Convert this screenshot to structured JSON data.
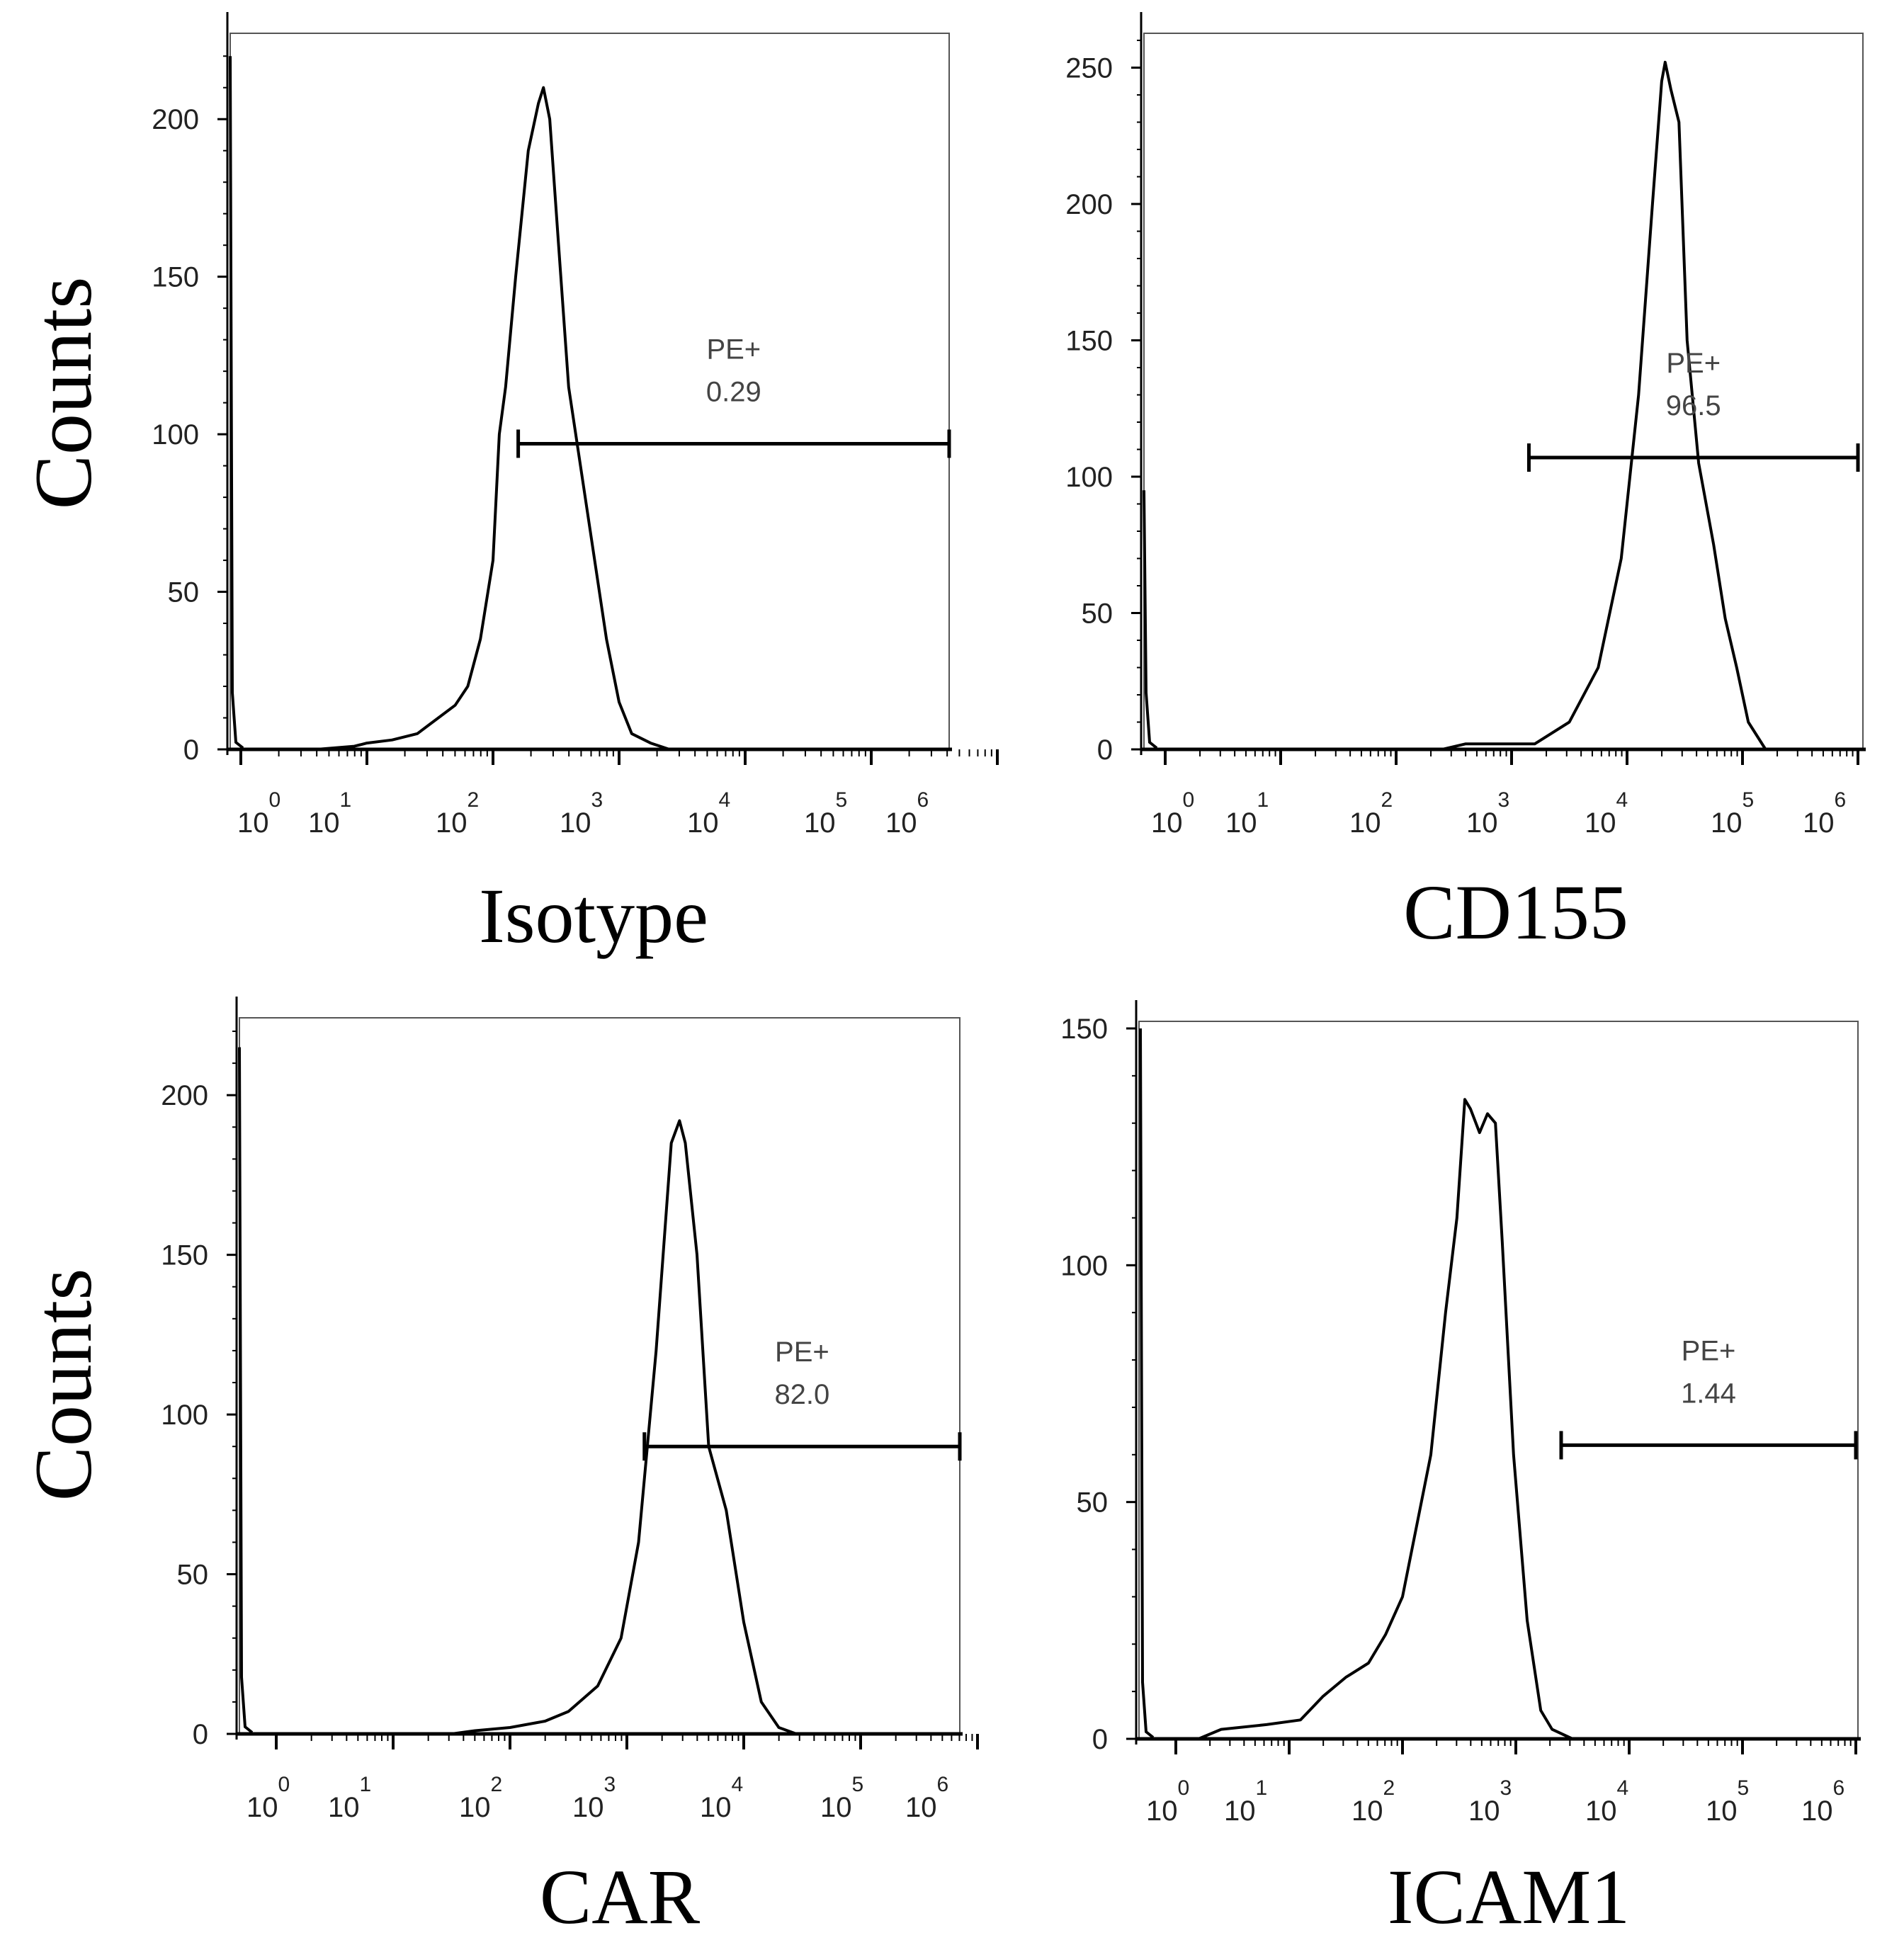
{
  "y_axis_label": "Counts",
  "gate_label": "PE+",
  "colors": {
    "line": "#000000",
    "frame": "#555555",
    "background": "#ffffff"
  },
  "chart_data": [
    {
      "type": "histogram",
      "title": "Isotype",
      "ylabel": "Counts",
      "xscale": "log",
      "ylim": [
        0,
        225
      ],
      "yticks": [
        0,
        50,
        100,
        150,
        200
      ],
      "xticks": [
        "10^0",
        "10^1",
        "10^2",
        "10^3",
        "10^4",
        "10^5",
        "10^6"
      ],
      "gate": {
        "label": "PE+",
        "value": "0.29",
        "start_decade": 2.2,
        "end_decade": 6.0,
        "level": 97
      },
      "curve": [
        [
          0,
          0
        ],
        [
          0.6,
          0
        ],
        [
          0.9,
          1
        ],
        [
          1.0,
          2
        ],
        [
          1.2,
          3
        ],
        [
          1.4,
          5
        ],
        [
          1.5,
          8
        ],
        [
          1.7,
          14
        ],
        [
          1.8,
          20
        ],
        [
          1.9,
          35
        ],
        [
          2.0,
          60
        ],
        [
          2.05,
          100
        ],
        [
          2.1,
          115
        ],
        [
          2.18,
          150
        ],
        [
          2.28,
          190
        ],
        [
          2.36,
          205
        ],
        [
          2.4,
          210
        ],
        [
          2.45,
          200
        ],
        [
          2.52,
          160
        ],
        [
          2.6,
          115
        ],
        [
          2.75,
          75
        ],
        [
          2.9,
          35
        ],
        [
          3.0,
          15
        ],
        [
          3.1,
          5
        ],
        [
          3.25,
          2
        ],
        [
          3.4,
          0
        ],
        [
          6.0,
          0
        ]
      ],
      "spike_height": 220
    },
    {
      "type": "histogram",
      "title": "CD155",
      "ylabel": "Counts",
      "xscale": "log",
      "ylim": [
        0,
        260
      ],
      "yticks": [
        0,
        50,
        100,
        150,
        200,
        250
      ],
      "xticks": [
        "10^0",
        "10^1",
        "10^2",
        "10^3",
        "10^4",
        "10^5",
        "10^6"
      ],
      "gate": {
        "label": "PE+",
        "value": "96.5",
        "start_decade": 3.15,
        "end_decade": 6.0,
        "level": 107
      },
      "curve": [
        [
          0,
          0
        ],
        [
          1.0,
          0
        ],
        [
          2.4,
          0
        ],
        [
          2.6,
          2
        ],
        [
          3.2,
          2
        ],
        [
          3.5,
          10
        ],
        [
          3.75,
          30
        ],
        [
          3.95,
          70
        ],
        [
          4.1,
          130
        ],
        [
          4.22,
          200
        ],
        [
          4.3,
          245
        ],
        [
          4.33,
          252
        ],
        [
          4.38,
          242
        ],
        [
          4.45,
          230
        ],
        [
          4.52,
          150
        ],
        [
          4.62,
          105
        ],
        [
          4.75,
          75
        ],
        [
          4.85,
          48
        ],
        [
          4.95,
          30
        ],
        [
          5.05,
          10
        ],
        [
          5.2,
          0
        ],
        [
          6.0,
          0
        ]
      ],
      "spike_height": 95
    },
    {
      "type": "histogram",
      "title": "CAR",
      "ylabel": "Counts",
      "xscale": "log",
      "ylim": [
        0,
        222
      ],
      "yticks": [
        0,
        50,
        100,
        150,
        200
      ],
      "xticks": [
        "10^0",
        "10^1",
        "10^2",
        "10^3",
        "10^4",
        "10^5",
        "10^6"
      ],
      "gate": {
        "label": "PE+",
        "value": "82.0",
        "start_decade": 3.15,
        "end_decade": 6.0,
        "level": 90
      },
      "curve": [
        [
          0,
          0
        ],
        [
          1.5,
          0
        ],
        [
          1.7,
          1
        ],
        [
          2.0,
          2
        ],
        [
          2.3,
          4
        ],
        [
          2.5,
          7
        ],
        [
          2.75,
          15
        ],
        [
          2.95,
          30
        ],
        [
          3.1,
          60
        ],
        [
          3.25,
          120
        ],
        [
          3.38,
          185
        ],
        [
          3.45,
          192
        ],
        [
          3.5,
          185
        ],
        [
          3.6,
          150
        ],
        [
          3.7,
          90
        ],
        [
          3.85,
          70
        ],
        [
          4.0,
          35
        ],
        [
          4.15,
          10
        ],
        [
          4.3,
          2
        ],
        [
          4.45,
          0
        ],
        [
          6.0,
          0
        ]
      ],
      "spike_height": 215
    },
    {
      "type": "histogram",
      "title": "ICAM1",
      "ylabel": "Counts",
      "xscale": "log",
      "ylim": [
        0,
        150
      ],
      "yticks": [
        0,
        50,
        100,
        150
      ],
      "xticks": [
        "10^0",
        "10^1",
        "10^2",
        "10^3",
        "10^4",
        "10^5",
        "10^6"
      ],
      "gate": {
        "label": "PE+",
        "value": "1.44",
        "start_decade": 3.4,
        "end_decade": 6.0,
        "level": 62
      },
      "curve": [
        [
          0,
          0
        ],
        [
          0.2,
          0
        ],
        [
          0.4,
          2
        ],
        [
          0.8,
          3
        ],
        [
          1.1,
          4
        ],
        [
          1.3,
          9
        ],
        [
          1.5,
          13
        ],
        [
          1.7,
          16
        ],
        [
          1.85,
          22
        ],
        [
          2.0,
          30
        ],
        [
          2.1,
          42
        ],
        [
          2.25,
          60
        ],
        [
          2.38,
          90
        ],
        [
          2.48,
          110
        ],
        [
          2.55,
          135
        ],
        [
          2.6,
          133
        ],
        [
          2.68,
          128
        ],
        [
          2.75,
          132
        ],
        [
          2.82,
          130
        ],
        [
          2.88,
          105
        ],
        [
          2.98,
          60
        ],
        [
          3.1,
          25
        ],
        [
          3.22,
          6
        ],
        [
          3.32,
          2
        ],
        [
          3.5,
          0
        ],
        [
          6.0,
          0
        ]
      ],
      "spike_height": 150
    }
  ]
}
